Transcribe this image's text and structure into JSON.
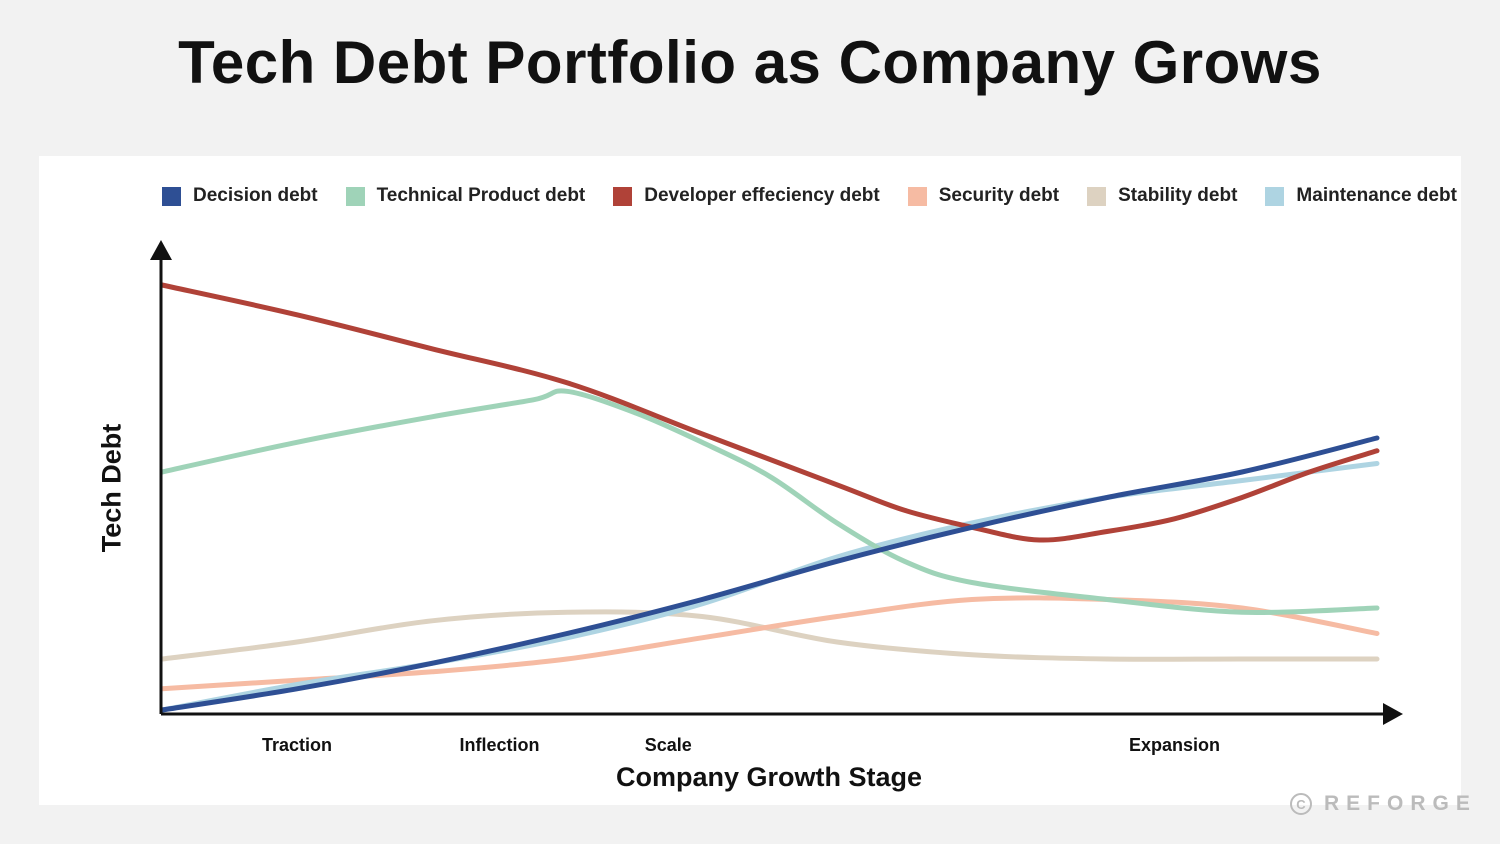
{
  "chart_data": {
    "type": "line",
    "title": "Tech Debt Portfolio as Company Grows",
    "xlabel": "Company Growth Stage",
    "ylabel": "Tech Debt",
    "categories": [
      "Traction",
      "Inflection",
      "Scale",
      "Expansion"
    ],
    "category_positions": [
      2,
      5,
      7.5,
      15
    ],
    "xlim": [
      0,
      18
    ],
    "ylim": [
      0,
      100
    ],
    "grid": false,
    "legend_position": "top",
    "series": [
      {
        "name": "Decision debt",
        "color": "#2e4f94",
        "points": [
          [
            0,
            0
          ],
          [
            2,
            5
          ],
          [
            4,
            11
          ],
          [
            6,
            18
          ],
          [
            8,
            26
          ],
          [
            10,
            35
          ],
          [
            12,
            43
          ],
          [
            14,
            50
          ],
          [
            16,
            56
          ],
          [
            18,
            64
          ]
        ]
      },
      {
        "name": "Technical Product debt",
        "color": "#9fd3b8",
        "points": [
          [
            0,
            56
          ],
          [
            2,
            63
          ],
          [
            4,
            69
          ],
          [
            5.5,
            73
          ],
          [
            6,
            75
          ],
          [
            7,
            70
          ],
          [
            8,
            63
          ],
          [
            9,
            55
          ],
          [
            10,
            44
          ],
          [
            11,
            35
          ],
          [
            12,
            30
          ],
          [
            14,
            26
          ],
          [
            16,
            23
          ],
          [
            18,
            24
          ]
        ]
      },
      {
        "name": "Developer effeciency debt",
        "color": "#b04238",
        "points": [
          [
            0,
            100
          ],
          [
            2,
            93
          ],
          [
            4,
            85
          ],
          [
            6,
            77
          ],
          [
            8,
            65
          ],
          [
            10,
            53
          ],
          [
            11,
            47
          ],
          [
            12,
            43
          ],
          [
            13,
            40
          ],
          [
            14,
            42
          ],
          [
            15,
            45
          ],
          [
            16,
            50
          ],
          [
            17,
            56
          ],
          [
            18,
            61
          ]
        ]
      },
      {
        "name": "Security debt",
        "color": "#f6bba3",
        "points": [
          [
            0,
            5
          ],
          [
            2,
            7
          ],
          [
            4,
            9
          ],
          [
            6,
            12
          ],
          [
            8,
            17
          ],
          [
            10,
            22
          ],
          [
            12,
            26
          ],
          [
            14,
            26
          ],
          [
            16,
            24
          ],
          [
            18,
            18
          ]
        ]
      },
      {
        "name": "Stability debt",
        "color": "#ddd2c1",
        "points": [
          [
            0,
            12
          ],
          [
            2,
            16
          ],
          [
            4,
            21
          ],
          [
            6,
            23
          ],
          [
            8,
            22
          ],
          [
            10,
            16
          ],
          [
            12,
            13
          ],
          [
            14,
            12
          ],
          [
            16,
            12
          ],
          [
            18,
            12
          ]
        ]
      },
      {
        "name": "Maintenance debt",
        "color": "#aed4e2",
        "points": [
          [
            0,
            0
          ],
          [
            2,
            6
          ],
          [
            4,
            11
          ],
          [
            6,
            17
          ],
          [
            8,
            25
          ],
          [
            10,
            36
          ],
          [
            12,
            44
          ],
          [
            14,
            50
          ],
          [
            16,
            54
          ],
          [
            18,
            58
          ]
        ]
      }
    ]
  },
  "watermark": {
    "icon": "copyright-icon",
    "icon_glyph": "C",
    "text": "REFORGE"
  }
}
